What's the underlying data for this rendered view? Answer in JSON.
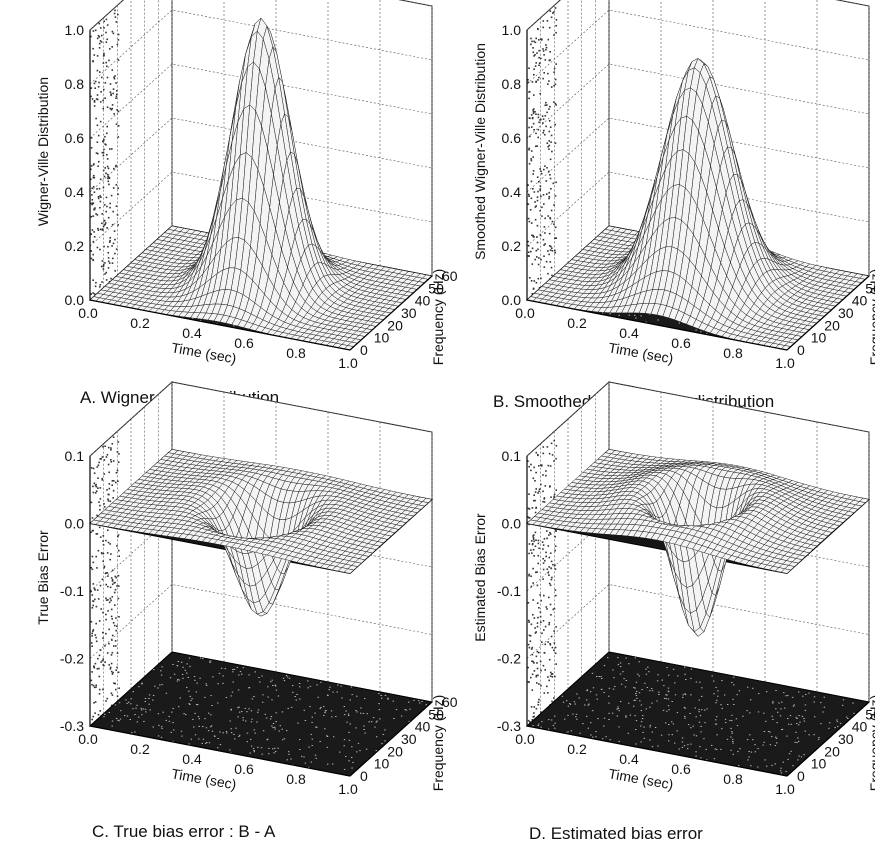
{
  "figure": {
    "panels": [
      {
        "id": "A",
        "caption": "A. Wigner-Ville distribution",
        "zlabel": "Wigner-Ville Distribution",
        "xlabel": "Time (sec)",
        "ylabel": "Frequency (Hz)",
        "zticks": [
          "0.0",
          "0.2",
          "0.4",
          "0.6",
          "0.8",
          "1.0"
        ],
        "xticks": [
          "0.0",
          "0.2",
          "0.4",
          "0.6",
          "0.8",
          "1.0"
        ],
        "yticks": [
          "0",
          "10",
          "20",
          "30",
          "40",
          "50",
          "60"
        ]
      },
      {
        "id": "B",
        "caption": "B. Smoothed Wigner-Ville distribution",
        "zlabel": "Smoothed Wigner-Ville Distribution",
        "xlabel": "Time (sec)",
        "ylabel": "Frequency (Hz)",
        "zticks": [
          "0.0",
          "0.2",
          "0.4",
          "0.6",
          "0.8",
          "1.0"
        ],
        "xticks": [
          "0.0",
          "0.2",
          "0.4",
          "0.6",
          "0.8",
          "1.0"
        ],
        "yticks": [
          "0",
          "10",
          "20",
          "30",
          "40",
          "50",
          "60"
        ]
      },
      {
        "id": "C",
        "caption": "C. True bias error : B - A",
        "zlabel": "True Bias Error",
        "xlabel": "Time (sec)",
        "ylabel": "Frequency (Hz)",
        "zticks": [
          "-0.3",
          "-0.2",
          "-0.1",
          "0.0",
          "0.1"
        ],
        "xticks": [
          "0.0",
          "0.2",
          "0.4",
          "0.6",
          "0.8",
          "1.0"
        ],
        "yticks": [
          "0",
          "10",
          "20",
          "30",
          "40",
          "50",
          "60"
        ]
      },
      {
        "id": "D",
        "caption": "D. Estimated bias error",
        "zlabel": "Estimated Bias Error",
        "xlabel": "Time (sec)",
        "ylabel": "Frequency (Hz)",
        "zticks": [
          "-0.3",
          "-0.2",
          "-0.1",
          "0.0",
          "0.1"
        ],
        "xticks": [
          "0.0",
          "0.2",
          "0.4",
          "0.6",
          "0.8",
          "1.0"
        ],
        "yticks": [
          "0",
          "10",
          "20",
          "30",
          "40",
          "50",
          "60"
        ]
      }
    ]
  },
  "chart_data": [
    {
      "type": "surface",
      "xlabel": "Time (sec)",
      "ylabel": "Frequency (Hz)",
      "zlabel": "Wigner-Ville Distribution",
      "xlim": [
        0.0,
        1.0
      ],
      "ylim": [
        0,
        60
      ],
      "zlim": [
        0.0,
        1.0
      ],
      "peak": {
        "x": 0.5,
        "y": 30,
        "z": 1.0
      },
      "spread": {
        "x": 0.1,
        "y": 10
      },
      "components": [
        {
          "amp": 1.0,
          "x0": 0.5,
          "y0": 30,
          "sx": 0.1,
          "sy": 10
        }
      ],
      "floor_z": 0.0
    },
    {
      "type": "surface",
      "xlabel": "Time (sec)",
      "ylabel": "Frequency (Hz)",
      "zlabel": "Smoothed Wigner-Ville Distribution",
      "xlim": [
        0.0,
        1.0
      ],
      "ylim": [
        0,
        60
      ],
      "zlim": [
        0.0,
        1.0
      ],
      "peak": {
        "x": 0.5,
        "y": 30,
        "z": 0.85
      },
      "spread": {
        "x": 0.12,
        "y": 12
      },
      "components": [
        {
          "amp": 0.85,
          "x0": 0.5,
          "y0": 30,
          "sx": 0.12,
          "sy": 12
        }
      ],
      "floor_z": 0.0
    },
    {
      "type": "surface",
      "xlabel": "Time (sec)",
      "ylabel": "Frequency (Hz)",
      "zlabel": "True Bias Error",
      "xlim": [
        0.0,
        1.0
      ],
      "ylim": [
        0,
        60
      ],
      "zlim": [
        -0.3,
        0.1
      ],
      "trough": {
        "x": 0.5,
        "y": 30,
        "z": -0.16
      },
      "ridge": {
        "z": 0.025
      },
      "components": [
        {
          "amp": -0.185,
          "x0": 0.5,
          "y0": 30,
          "sx": 0.09,
          "sy": 9
        },
        {
          "amp": 0.03,
          "x0": 0.5,
          "y0": 30,
          "sx": 0.18,
          "sy": 17
        }
      ],
      "floor_z": -0.3
    },
    {
      "type": "surface",
      "xlabel": "Time (sec)",
      "ylabel": "Frequency (Hz)",
      "zlabel": "Estimated Bias Error",
      "xlim": [
        0.0,
        1.0
      ],
      "ylim": [
        0,
        60
      ],
      "zlim": [
        -0.3,
        0.1
      ],
      "trough": {
        "x": 0.5,
        "y": 30,
        "z": -0.2
      },
      "ridge": {
        "z": 0.06
      },
      "components": [
        {
          "amp": -0.26,
          "x0": 0.5,
          "y0": 30,
          "sx": 0.085,
          "sy": 8.5
        },
        {
          "amp": 0.075,
          "x0": 0.5,
          "y0": 30,
          "sx": 0.17,
          "sy": 16
        }
      ],
      "floor_z": -0.3
    }
  ]
}
